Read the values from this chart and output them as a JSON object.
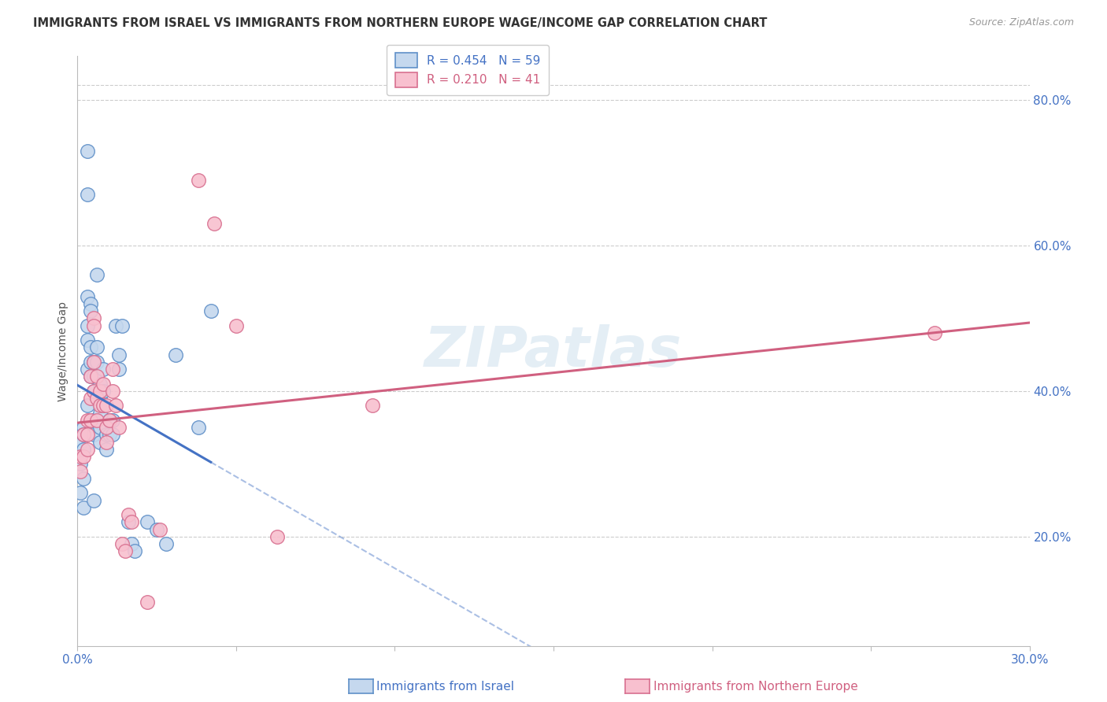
{
  "title": "IMMIGRANTS FROM ISRAEL VS IMMIGRANTS FROM NORTHERN EUROPE WAGE/INCOME GAP CORRELATION CHART",
  "source": "Source: ZipAtlas.com",
  "ylabel": "Wage/Income Gap",
  "legend_blue_stat": "R = 0.454   N = 59",
  "legend_pink_stat": "R = 0.210   N = 41",
  "legend_blue_label": "Immigrants from Israel",
  "legend_pink_label": "Immigrants from Northern Europe",
  "blue_face": "#c5d8ee",
  "blue_edge": "#6090c8",
  "pink_face": "#f8c0cf",
  "pink_edge": "#d87090",
  "blue_line": "#4472c4",
  "pink_line": "#d06080",
  "watermark": "ZIPatlas",
  "xlim": [
    0.0,
    0.3
  ],
  "ylim": [
    0.05,
    0.86
  ],
  "right_yticks": [
    0.2,
    0.4,
    0.6,
    0.8
  ],
  "right_ytick_labels": [
    "20.0%",
    "40.0%",
    "60.0%",
    "80.0%"
  ],
  "blue_scatter_x": [
    0.001,
    0.001,
    0.001,
    0.002,
    0.002,
    0.002,
    0.002,
    0.002,
    0.003,
    0.003,
    0.003,
    0.003,
    0.003,
    0.003,
    0.003,
    0.004,
    0.004,
    0.004,
    0.004,
    0.004,
    0.005,
    0.005,
    0.005,
    0.005,
    0.005,
    0.005,
    0.005,
    0.006,
    0.006,
    0.006,
    0.006,
    0.007,
    0.007,
    0.007,
    0.007,
    0.007,
    0.008,
    0.008,
    0.008,
    0.009,
    0.009,
    0.009,
    0.01,
    0.01,
    0.011,
    0.011,
    0.012,
    0.013,
    0.013,
    0.014,
    0.016,
    0.017,
    0.018,
    0.022,
    0.025,
    0.028,
    0.031,
    0.038,
    0.042
  ],
  "blue_scatter_y": [
    0.33,
    0.3,
    0.26,
    0.35,
    0.34,
    0.32,
    0.28,
    0.24,
    0.73,
    0.67,
    0.53,
    0.49,
    0.47,
    0.43,
    0.38,
    0.52,
    0.51,
    0.46,
    0.44,
    0.42,
    0.44,
    0.42,
    0.4,
    0.36,
    0.36,
    0.34,
    0.25,
    0.56,
    0.46,
    0.44,
    0.39,
    0.41,
    0.39,
    0.37,
    0.35,
    0.33,
    0.43,
    0.4,
    0.38,
    0.35,
    0.34,
    0.32,
    0.36,
    0.34,
    0.36,
    0.34,
    0.49,
    0.45,
    0.43,
    0.49,
    0.22,
    0.19,
    0.18,
    0.22,
    0.21,
    0.19,
    0.45,
    0.35,
    0.51
  ],
  "pink_scatter_x": [
    0.001,
    0.001,
    0.002,
    0.002,
    0.003,
    0.003,
    0.003,
    0.004,
    0.004,
    0.004,
    0.005,
    0.005,
    0.005,
    0.005,
    0.006,
    0.006,
    0.006,
    0.007,
    0.007,
    0.008,
    0.008,
    0.009,
    0.009,
    0.009,
    0.01,
    0.011,
    0.011,
    0.012,
    0.013,
    0.014,
    0.015,
    0.016,
    0.017,
    0.022,
    0.026,
    0.038,
    0.043,
    0.05,
    0.063,
    0.093,
    0.27
  ],
  "pink_scatter_y": [
    0.31,
    0.29,
    0.34,
    0.31,
    0.36,
    0.34,
    0.32,
    0.42,
    0.39,
    0.36,
    0.5,
    0.49,
    0.44,
    0.4,
    0.42,
    0.39,
    0.36,
    0.4,
    0.38,
    0.41,
    0.38,
    0.38,
    0.35,
    0.33,
    0.36,
    0.43,
    0.4,
    0.38,
    0.35,
    0.19,
    0.18,
    0.23,
    0.22,
    0.11,
    0.21,
    0.69,
    0.63,
    0.49,
    0.2,
    0.38,
    0.48
  ]
}
